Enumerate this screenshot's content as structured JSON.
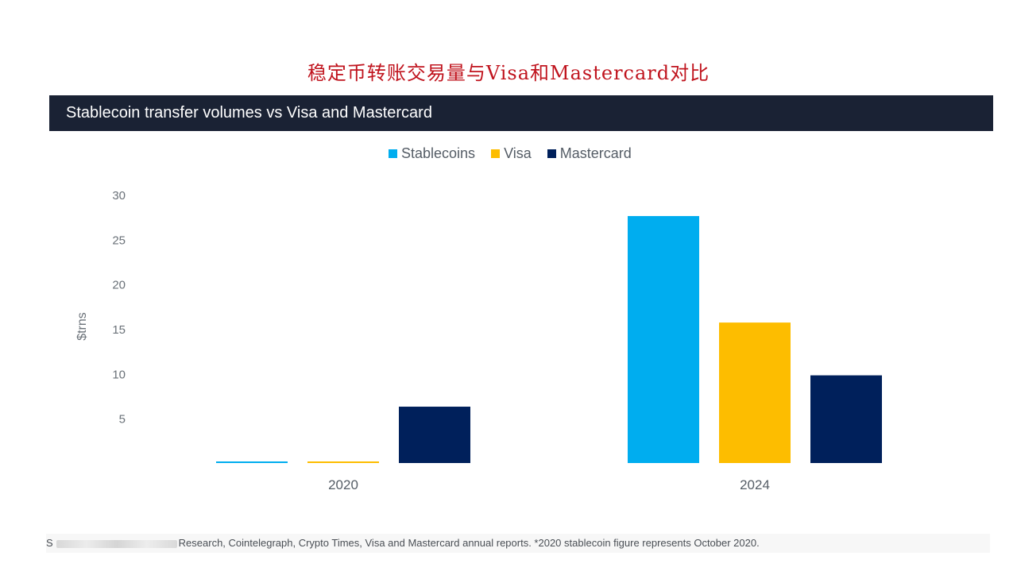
{
  "page_title": "稳定币转账交易量与Visa和Mastercard对比",
  "chart_header": "Stablecoin transfer volumes vs Visa and Mastercard",
  "source_note": "Research, Cointelegraph, Crypto Times, Visa and Mastercard annual reports.  *2020 stablecoin figure represents October 2020.",
  "source_prefix": "S",
  "colors": {
    "stablecoins": "#00adef",
    "visa": "#fdbd00",
    "mastercard": "#00205b",
    "header_bg": "#1a2234",
    "title_red": "#c0141e"
  },
  "chart_data": {
    "type": "bar",
    "title": "Stablecoin transfer volumes vs Visa and Mastercard",
    "xlabel": "",
    "ylabel": "$trns",
    "ylim": [
      0,
      30
    ],
    "yticks": [
      5,
      10,
      15,
      20,
      25,
      30
    ],
    "grid": false,
    "legend_position": "top-center",
    "categories": [
      "2020",
      "2024"
    ],
    "series": [
      {
        "name": "Stablecoins",
        "color": "#00adef",
        "values": [
          0.1,
          27.6
        ]
      },
      {
        "name": "Visa",
        "color": "#fdbd00",
        "values": [
          0.1,
          15.7
        ]
      },
      {
        "name": "Mastercard",
        "color": "#00205b",
        "values": [
          6.3,
          9.8
        ]
      }
    ]
  }
}
